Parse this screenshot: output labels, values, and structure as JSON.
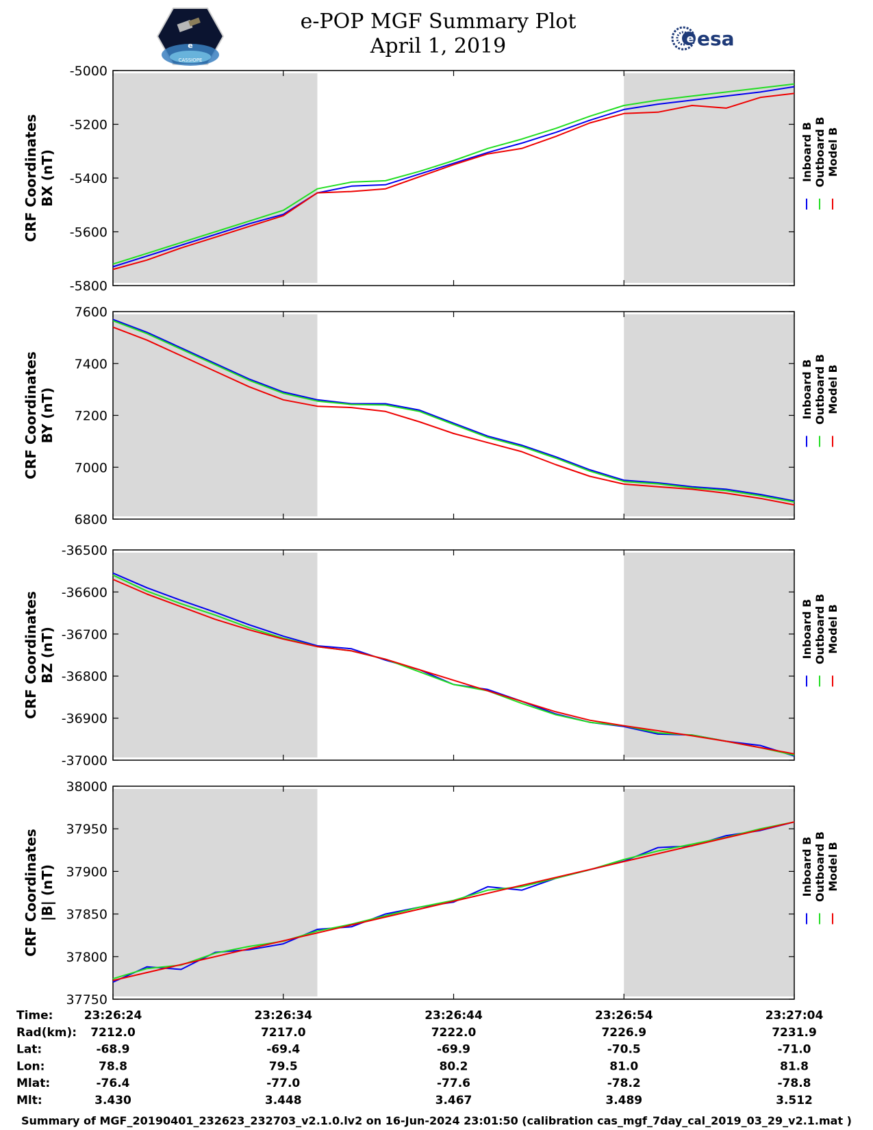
{
  "header": {
    "title_line1": "e-POP MGF Summary Plot",
    "title_line2": "April 1, 2019",
    "logo_left": "CASSIOPE",
    "logo_right": "esa"
  },
  "colors": {
    "inboard": "#0000ee",
    "outboard": "#22dd22",
    "model": "#ee0000",
    "shade": "#d9d9d9"
  },
  "chart_data": [
    {
      "type": "line",
      "ylabel_line1": "CRF Coordinates",
      "ylabel_line2": "BX (nT)",
      "ylim": [
        -5800,
        -5000
      ],
      "yticks": [
        -5000,
        -5200,
        -5400,
        -5600,
        -5800
      ],
      "ytick_labels": [
        "-5000",
        "-5200",
        "-5400",
        "-5600",
        "-5800"
      ],
      "x_range_s": [
        0,
        40
      ],
      "shaded_intervals_s": [
        [
          0,
          12
        ],
        [
          30,
          40
        ]
      ],
      "legend": [
        "Inboard B",
        "Outboard B",
        "Model B"
      ],
      "series": [
        {
          "name": "Inboard B",
          "x": [
            0,
            2,
            4,
            6,
            8,
            10,
            12,
            14,
            16,
            18,
            20,
            22,
            24,
            26,
            28,
            30,
            32,
            34,
            36,
            38,
            40
          ],
          "y": [
            -5730,
            -5690,
            -5650,
            -5610,
            -5570,
            -5535,
            -5455,
            -5430,
            -5425,
            -5385,
            -5345,
            -5305,
            -5270,
            -5230,
            -5185,
            -5145,
            -5125,
            -5110,
            -5095,
            -5080,
            -5060
          ]
        },
        {
          "name": "Outboard B",
          "x": [
            0,
            2,
            4,
            6,
            8,
            10,
            12,
            14,
            16,
            18,
            20,
            22,
            24,
            26,
            28,
            30,
            32,
            34,
            36,
            38,
            40
          ],
          "y": [
            -5720,
            -5680,
            -5640,
            -5600,
            -5560,
            -5520,
            -5440,
            -5415,
            -5410,
            -5375,
            -5335,
            -5290,
            -5255,
            -5215,
            -5170,
            -5130,
            -5110,
            -5095,
            -5080,
            -5065,
            -5050
          ]
        },
        {
          "name": "Model B",
          "x": [
            0,
            2,
            4,
            6,
            8,
            10,
            12,
            14,
            16,
            18,
            20,
            22,
            24,
            26,
            28,
            30,
            32,
            34,
            36,
            38,
            40
          ],
          "y": [
            -5740,
            -5705,
            -5660,
            -5620,
            -5580,
            -5540,
            -5455,
            -5450,
            -5440,
            -5395,
            -5350,
            -5310,
            -5290,
            -5245,
            -5195,
            -5160,
            -5155,
            -5130,
            -5140,
            -5100,
            -5085
          ]
        }
      ]
    },
    {
      "type": "line",
      "ylabel_line1": "CRF Coordinates",
      "ylabel_line2": "BY (nT)",
      "ylim": [
        6800,
        7600
      ],
      "yticks": [
        7600,
        7400,
        7200,
        7000,
        6800
      ],
      "ytick_labels": [
        "7600",
        "7400",
        "7200",
        "7000",
        "6800"
      ],
      "x_range_s": [
        0,
        40
      ],
      "shaded_intervals_s": [
        [
          0,
          12
        ],
        [
          30,
          40
        ]
      ],
      "legend": [
        "Inboard B",
        "Outboard B",
        "Model B"
      ],
      "series": [
        {
          "name": "Inboard B",
          "x": [
            0,
            2,
            4,
            6,
            8,
            10,
            12,
            14,
            16,
            18,
            20,
            22,
            24,
            26,
            28,
            30,
            32,
            34,
            36,
            38,
            40
          ],
          "y": [
            7570,
            7520,
            7460,
            7400,
            7340,
            7290,
            7260,
            7245,
            7245,
            7220,
            7170,
            7120,
            7085,
            7040,
            6990,
            6950,
            6940,
            6925,
            6915,
            6895,
            6870
          ]
        },
        {
          "name": "Outboard B",
          "x": [
            0,
            2,
            4,
            6,
            8,
            10,
            12,
            14,
            16,
            18,
            20,
            22,
            24,
            26,
            28,
            30,
            32,
            34,
            36,
            38,
            40
          ],
          "y": [
            7565,
            7515,
            7455,
            7395,
            7335,
            7285,
            7255,
            7242,
            7240,
            7215,
            7165,
            7115,
            7080,
            7035,
            6985,
            6945,
            6936,
            6920,
            6910,
            6890,
            6866
          ]
        },
        {
          "name": "Model B",
          "x": [
            0,
            2,
            4,
            6,
            8,
            10,
            12,
            14,
            16,
            18,
            20,
            22,
            24,
            26,
            28,
            30,
            32,
            34,
            36,
            38,
            40
          ],
          "y": [
            7540,
            7490,
            7430,
            7370,
            7310,
            7260,
            7235,
            7230,
            7215,
            7175,
            7130,
            7095,
            7060,
            7010,
            6965,
            6935,
            6925,
            6915,
            6900,
            6880,
            6855
          ]
        }
      ]
    },
    {
      "type": "line",
      "ylabel_line1": "CRF Coordinates",
      "ylabel_line2": "BZ (nT)",
      "ylim": [
        -37000,
        -36500
      ],
      "yticks": [
        -36500,
        -36600,
        -36700,
        -36800,
        -36900,
        -37000
      ],
      "ytick_labels": [
        "-36500",
        "-36600",
        "-36700",
        "-36800",
        "-36900",
        "-37000"
      ],
      "x_range_s": [
        0,
        40
      ],
      "shaded_intervals_s": [
        [
          0,
          12
        ],
        [
          30,
          40
        ]
      ],
      "legend": [
        "Inboard B",
        "Outboard B",
        "Model B"
      ],
      "series": [
        {
          "name": "Inboard B",
          "x": [
            0,
            2,
            4,
            6,
            8,
            10,
            12,
            14,
            16,
            18,
            20,
            22,
            24,
            26,
            28,
            30,
            32,
            34,
            36,
            38,
            40
          ],
          "y": [
            -36555,
            -36590,
            -36620,
            -36648,
            -36678,
            -36705,
            -36728,
            -36735,
            -36762,
            -36785,
            -36820,
            -36832,
            -36860,
            -36890,
            -36910,
            -36920,
            -36938,
            -36940,
            -36955,
            -36965,
            -36990
          ]
        },
        {
          "name": "Outboard B",
          "x": [
            0,
            2,
            4,
            6,
            8,
            10,
            12,
            14,
            16,
            18,
            20,
            22,
            24,
            26,
            28,
            30,
            32,
            34,
            36,
            38,
            40
          ],
          "y": [
            -36560,
            -36598,
            -36628,
            -36655,
            -36685,
            -36710,
            -36730,
            -36740,
            -36760,
            -36790,
            -36820,
            -36835,
            -36865,
            -36892,
            -36910,
            -36918,
            -36935,
            -36940,
            -36955,
            -36970,
            -36988
          ]
        },
        {
          "name": "Model B",
          "x": [
            0,
            2,
            4,
            6,
            8,
            10,
            12,
            14,
            16,
            18,
            20,
            22,
            24,
            26,
            28,
            30,
            32,
            34,
            36,
            38,
            40
          ],
          "y": [
            -36570,
            -36605,
            -36635,
            -36665,
            -36690,
            -36712,
            -36730,
            -36740,
            -36760,
            -36785,
            -36810,
            -36835,
            -36860,
            -36885,
            -36905,
            -36918,
            -36930,
            -36942,
            -36955,
            -36970,
            -36985
          ]
        }
      ]
    },
    {
      "type": "line",
      "ylabel_line1": "CRF Coordinates",
      "ylabel_line2": "|B| (nT)",
      "ylim": [
        37750,
        38000
      ],
      "yticks": [
        38000,
        37950,
        37900,
        37850,
        37800,
        37750
      ],
      "ytick_labels": [
        "38000",
        "37950",
        "37900",
        "37850",
        "37800",
        "37750"
      ],
      "x_range_s": [
        0,
        40
      ],
      "shaded_intervals_s": [
        [
          0,
          12
        ],
        [
          30,
          40
        ]
      ],
      "legend": [
        "Inboard B",
        "Outboard B",
        "Model B"
      ],
      "series": [
        {
          "name": "Inboard B",
          "x": [
            0,
            2,
            4,
            6,
            8,
            10,
            12,
            14,
            16,
            18,
            20,
            22,
            24,
            26,
            28,
            30,
            32,
            34,
            36,
            38,
            40
          ],
          "y": [
            37770,
            37788,
            37785,
            37805,
            37808,
            37815,
            37832,
            37835,
            37850,
            37858,
            37864,
            37882,
            37878,
            37892,
            37902,
            37912,
            37928,
            37930,
            37942,
            37948,
            37958
          ]
        },
        {
          "name": "Outboard B",
          "x": [
            0,
            2,
            4,
            6,
            8,
            10,
            12,
            14,
            16,
            18,
            20,
            22,
            24,
            26,
            28,
            30,
            32,
            34,
            36,
            38,
            40
          ],
          "y": [
            37774,
            37786,
            37790,
            37804,
            37812,
            37818,
            37830,
            37838,
            37848,
            37858,
            37866,
            37878,
            37882,
            37892,
            37902,
            37914,
            37924,
            37932,
            37940,
            37950,
            37958
          ]
        },
        {
          "name": "Model B",
          "x": [
            0,
            40
          ],
          "y": [
            37772,
            37958
          ]
        }
      ]
    }
  ],
  "x_axis": {
    "info_rows": [
      {
        "label": "Time:",
        "values": [
          "23:26:24",
          "23:26:34",
          "23:26:44",
          "23:26:54",
          "23:27:04"
        ]
      },
      {
        "label": "Rad(km):",
        "values": [
          "7212.0",
          "7217.0",
          "7222.0",
          "7226.9",
          "7231.9"
        ]
      },
      {
        "label": "Lat:",
        "values": [
          "-68.9",
          "-69.4",
          "-69.9",
          "-70.5",
          "-71.0"
        ]
      },
      {
        "label": "Lon:",
        "values": [
          "78.8",
          "79.5",
          "80.2",
          "81.0",
          "81.8"
        ]
      },
      {
        "label": "Mlat:",
        "values": [
          "-76.4",
          "-77.0",
          "-77.6",
          "-78.2",
          "-78.8"
        ]
      },
      {
        "label": "Mlt:",
        "values": [
          "3.430",
          "3.448",
          "3.467",
          "3.489",
          "3.512"
        ]
      }
    ],
    "tick_seconds": [
      0,
      10,
      20,
      30,
      40
    ]
  },
  "footer": {
    "text": "Summary of MGF_20190401_232623_232703_v2.1.0.lv2 on 16-Jun-2024 23:01:50 (calibration cas_mgf_7day_cal_2019_03_29_v2.1.mat )"
  }
}
